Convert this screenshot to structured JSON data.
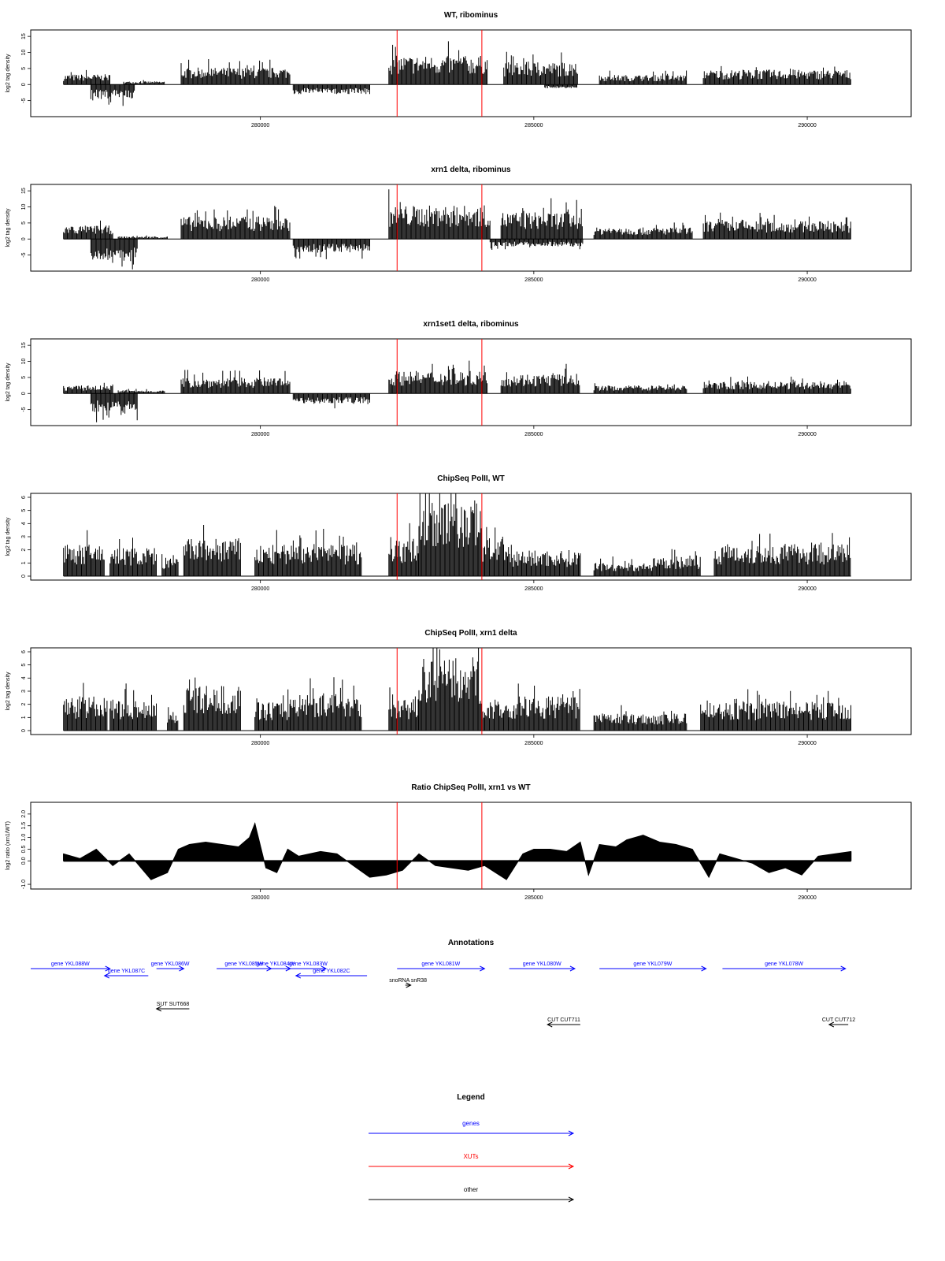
{
  "chart_data": [
    {
      "type": "bar",
      "title": "WT, ribominus",
      "ylabel": "log2 tag density",
      "ylim": [
        -10,
        17
      ],
      "yticks": [
        "-5",
        "0",
        "5",
        "10",
        "15"
      ],
      "xlim": [
        275800,
        291900
      ],
      "xticks": [
        "280000",
        "285000",
        "290000"
      ],
      "markers": [
        282500,
        284050
      ],
      "profile": {
        "pos": [
          {
            "from": 276400,
            "to": 277250,
            "h": 3.2
          },
          {
            "from": 277500,
            "to": 278250,
            "h": 1.0
          },
          {
            "from": 278550,
            "to": 280550,
            "h": 5.3
          },
          {
            "from": 282350,
            "to": 284150,
            "h": 9.0
          },
          {
            "from": 284450,
            "to": 285800,
            "h": 7.0
          },
          {
            "from": 286200,
            "to": 287800,
            "h": 3.0
          },
          {
            "from": 288100,
            "to": 290800,
            "h": 4.6
          }
        ],
        "neg": [
          {
            "from": 276900,
            "to": 277700,
            "h": -4.5
          },
          {
            "from": 280600,
            "to": 282000,
            "h": -3.0
          },
          {
            "from": 285200,
            "to": 285800,
            "h": -1.2
          }
        ]
      }
    },
    {
      "type": "bar",
      "title": "xrn1 delta, ribominus",
      "ylabel": "log2 tag density",
      "ylim": [
        -10,
        17
      ],
      "yticks": [
        "-5",
        "0",
        "5",
        "10",
        "15"
      ],
      "xlim": [
        275800,
        291900
      ],
      "xticks": [
        "280000",
        "285000",
        "290000"
      ],
      "markers": [
        282500,
        284050
      ],
      "profile": {
        "pos": [
          {
            "from": 276400,
            "to": 277300,
            "h": 4.2
          },
          {
            "from": 277400,
            "to": 278300,
            "h": 0.8
          },
          {
            "from": 278550,
            "to": 280550,
            "h": 7.0
          },
          {
            "from": 282350,
            "to": 284200,
            "h": 10.5
          },
          {
            "from": 284400,
            "to": 285900,
            "h": 8.5
          },
          {
            "from": 286100,
            "to": 287900,
            "h": 3.6
          },
          {
            "from": 288100,
            "to": 290800,
            "h": 5.6
          }
        ],
        "neg": [
          {
            "from": 276900,
            "to": 277750,
            "h": -6.8
          },
          {
            "from": 280600,
            "to": 282000,
            "h": -4.3
          },
          {
            "from": 284200,
            "to": 285900,
            "h": -2.3
          }
        ]
      }
    },
    {
      "type": "bar",
      "title": "xrn1set1 delta, ribominus",
      "ylabel": "log2 tag density",
      "ylim": [
        -10,
        17
      ],
      "yticks": [
        "-5",
        "0",
        "5",
        "10",
        "15"
      ],
      "xlim": [
        275800,
        291900
      ],
      "xticks": [
        "280000",
        "285000",
        "290000"
      ],
      "markers": [
        282500,
        284050
      ],
      "profile": {
        "pos": [
          {
            "from": 276400,
            "to": 277300,
            "h": 2.5
          },
          {
            "from": 277400,
            "to": 278250,
            "h": 1.0
          },
          {
            "from": 278550,
            "to": 280550,
            "h": 5.0
          },
          {
            "from": 282350,
            "to": 284150,
            "h": 7.0
          },
          {
            "from": 284400,
            "to": 285850,
            "h": 6.2
          },
          {
            "from": 286100,
            "to": 287800,
            "h": 2.5
          },
          {
            "from": 288100,
            "to": 290800,
            "h": 3.6
          }
        ],
        "neg": [
          {
            "from": 276900,
            "to": 277750,
            "h": -6.3
          },
          {
            "from": 280600,
            "to": 282000,
            "h": -3.2
          }
        ]
      }
    },
    {
      "type": "bar",
      "title": "ChipSeq PolII, WT",
      "ylabel": "log2 tag density",
      "ylim": [
        -0.3,
        6.3
      ],
      "yticks": [
        "0",
        "1",
        "2",
        "3",
        "4",
        "5",
        "6"
      ],
      "xlim": [
        275800,
        291900
      ],
      "xticks": [
        "280000",
        "285000",
        "290000"
      ],
      "markers": [
        282500,
        284050
      ],
      "profile": {
        "pos": [
          {
            "from": 276400,
            "to": 277150,
            "h": 2.4
          },
          {
            "from": 277250,
            "to": 278100,
            "h": 2.2
          },
          {
            "from": 278200,
            "to": 278500,
            "h": 1.4
          },
          {
            "from": 278600,
            "to": 279650,
            "h": 2.9
          },
          {
            "from": 279900,
            "to": 280550,
            "h": 2.4
          },
          {
            "from": 280550,
            "to": 281850,
            "h": 2.5
          },
          {
            "from": 282350,
            "to": 282900,
            "h": 2.8
          },
          {
            "from": 282900,
            "to": 284050,
            "h": 5.8
          },
          {
            "from": 284050,
            "to": 284450,
            "h": 3.0
          },
          {
            "from": 284450,
            "to": 285850,
            "h": 2.0
          },
          {
            "from": 286100,
            "to": 287300,
            "h": 1.0
          },
          {
            "from": 287300,
            "to": 288050,
            "h": 1.5
          },
          {
            "from": 288300,
            "to": 290800,
            "h": 2.5
          }
        ],
        "neg": []
      }
    },
    {
      "type": "bar",
      "title": "ChipSeq PolII, xrn1 delta",
      "ylabel": "log2 tag density",
      "ylim": [
        -0.3,
        6.3
      ],
      "yticks": [
        "0",
        "1",
        "2",
        "3",
        "4",
        "5",
        "6"
      ],
      "xlim": [
        275800,
        291900
      ],
      "xticks": [
        "280000",
        "285000",
        "290000"
      ],
      "markers": [
        282500,
        284050
      ],
      "profile": {
        "pos": [
          {
            "from": 276400,
            "to": 277200,
            "h": 2.6
          },
          {
            "from": 277250,
            "to": 278100,
            "h": 2.4
          },
          {
            "from": 278300,
            "to": 278500,
            "h": 1.5
          },
          {
            "from": 278600,
            "to": 279650,
            "h": 3.4
          },
          {
            "from": 279900,
            "to": 280550,
            "h": 2.2
          },
          {
            "from": 280550,
            "to": 281850,
            "h": 2.9
          },
          {
            "from": 282350,
            "to": 282900,
            "h": 2.4
          },
          {
            "from": 282900,
            "to": 284050,
            "h": 5.6
          },
          {
            "from": 284050,
            "to": 284700,
            "h": 2.2
          },
          {
            "from": 284700,
            "to": 285850,
            "h": 2.6
          },
          {
            "from": 286100,
            "to": 287800,
            "h": 1.3
          },
          {
            "from": 288050,
            "to": 290800,
            "h": 2.2
          }
        ],
        "neg": []
      }
    },
    {
      "type": "area",
      "title": "Ratio ChipSeq PolII, xrn1 vs WT",
      "ylabel": "log2 ratio (xrn1/WT)",
      "ylim": [
        -1.2,
        2.5
      ],
      "yticks": [
        "-1.0",
        "0.0",
        "0.5",
        "1.0",
        "1.5",
        "2.0"
      ],
      "xlim": [
        275800,
        291900
      ],
      "xticks": [
        "280000",
        "285000",
        "290000"
      ],
      "markers": [
        282500,
        284050
      ],
      "x": [
        276400,
        276700,
        277000,
        277300,
        277600,
        278000,
        278300,
        278500,
        278700,
        279000,
        279300,
        279600,
        279800,
        279900,
        280100,
        280300,
        280500,
        280700,
        280900,
        281100,
        281400,
        281700,
        282000,
        282300,
        282600,
        282900,
        283200,
        283500,
        283800,
        284100,
        284300,
        284500,
        284800,
        285000,
        285300,
        285600,
        285850,
        286000,
        286200,
        286500,
        286700,
        287000,
        287300,
        287600,
        287900,
        288200,
        288400,
        288700,
        289000,
        289300,
        289600,
        289900,
        290200,
        290500,
        290800
      ],
      "y": [
        0.3,
        0.1,
        0.5,
        -0.2,
        0.3,
        -0.8,
        -0.5,
        0.5,
        0.7,
        0.8,
        0.7,
        0.6,
        1.0,
        1.6,
        -0.3,
        -0.5,
        0.5,
        0.2,
        0.3,
        0.4,
        0.3,
        -0.2,
        -0.7,
        -0.6,
        -0.4,
        0.3,
        -0.2,
        -0.3,
        -0.4,
        -0.2,
        -0.5,
        -0.8,
        0.3,
        0.5,
        0.5,
        0.4,
        0.8,
        -0.6,
        0.7,
        0.6,
        0.9,
        1.1,
        0.8,
        0.7,
        0.5,
        -0.7,
        0.3,
        0.1,
        -0.1,
        -0.5,
        -0.3,
        -0.6,
        0.2,
        0.3,
        0.4
      ]
    }
  ],
  "annotations": {
    "title": "Annotations",
    "features": [
      {
        "label": "gene YKL088W",
        "from": 275800,
        "to": 277250,
        "strand": "+",
        "row": 0,
        "color": "#0000ff"
      },
      {
        "label": "gene YKL087C",
        "from": 277150,
        "to": 277950,
        "strand": "-",
        "row": 1,
        "color": "#0000ff"
      },
      {
        "label": "gene YKL086W",
        "from": 278100,
        "to": 278600,
        "strand": "+",
        "row": 0,
        "color": "#0000ff"
      },
      {
        "label": "gene YKL085W",
        "from": 279200,
        "to": 280200,
        "strand": "+",
        "row": 0,
        "color": "#0000ff"
      },
      {
        "label": "gene YKL084W",
        "from": 280000,
        "to": 280550,
        "strand": "+",
        "row": 0,
        "color": "#0000ff"
      },
      {
        "label": "gene YKL083W",
        "from": 280550,
        "to": 281200,
        "strand": "+",
        "row": 0,
        "color": "#0000ff"
      },
      {
        "label": "gene YKL082C",
        "from": 280650,
        "to": 281950,
        "strand": "-",
        "row": 1,
        "color": "#0000ff"
      },
      {
        "label": "gene YKL081W",
        "from": 282500,
        "to": 284100,
        "strand": "+",
        "row": 0,
        "color": "#0000ff"
      },
      {
        "label": "gene YKL080W",
        "from": 284550,
        "to": 285750,
        "strand": "+",
        "row": 0,
        "color": "#0000ff"
      },
      {
        "label": "gene YKL079W",
        "from": 286200,
        "to": 288150,
        "strand": "+",
        "row": 0,
        "color": "#0000ff"
      },
      {
        "label": "gene YKL078W",
        "from": 288450,
        "to": 290700,
        "strand": "+",
        "row": 0,
        "color": "#0000ff"
      },
      {
        "label": "snoRNA snR38",
        "from": 282650,
        "to": 282750,
        "strand": "+",
        "row": 2,
        "color": "#000000"
      },
      {
        "label": "SUT SUT668",
        "from": 278100,
        "to": 278700,
        "strand": "-",
        "row": 3,
        "color": "#000000"
      },
      {
        "label": "CUT CUT711",
        "from": 285250,
        "to": 285850,
        "strand": "-",
        "row": 4,
        "color": "#000000"
      },
      {
        "label": "CUT CUT712",
        "from": 290400,
        "to": 290750,
        "strand": "-",
        "row": 4,
        "color": "#000000"
      }
    ]
  },
  "legend": {
    "title": "Legend",
    "items": [
      {
        "label": "genes",
        "color": "#0000ff"
      },
      {
        "label": "XUTs",
        "color": "#ff0000"
      },
      {
        "label": "other",
        "color": "#000000"
      }
    ]
  }
}
